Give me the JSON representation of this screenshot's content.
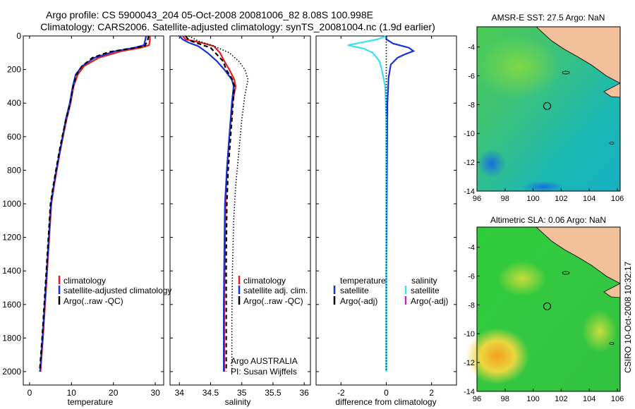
{
  "title": {
    "line1": "Argo profile: CS 5900043_204 05-Oct-2008 20081006_82 8.08S 100.998E",
    "line2": "Climatology: CARS2006. Satellite-adjusted climatology: synTS_20081004.nc (1.9d earlier)"
  },
  "side_label": "CSIRO 10-Oct-2008 10:32:17",
  "credit": {
    "line1": "Argo AUSTRALIA",
    "line2": "PI: Susan Wijffels"
  },
  "colors": {
    "climatology": "#e02020",
    "satellite": "#1830d8",
    "argo": "#000000",
    "cyan": "#38e0f0",
    "magenta": "#d020c8",
    "land": "#f2c09a"
  },
  "chart_data": [
    {
      "type": "line",
      "name": "temperature-profile",
      "xlabel": "temperature",
      "ylabel": "",
      "xlim": [
        -1.5,
        32
      ],
      "ylim": [
        0,
        2080
      ],
      "y_inverted": true,
      "xticks": [
        0,
        10,
        20,
        30
      ],
      "yticks": [
        0,
        200,
        400,
        600,
        800,
        1000,
        1200,
        1400,
        1600,
        1800,
        2000
      ],
      "legend": [
        "climatology",
        "satellite-adjusted climatology",
        "Argo(..raw -QC)"
      ],
      "series": [
        {
          "name": "climatology",
          "style": "solid",
          "color": "#e02020",
          "points": [
            [
              28.7,
              0
            ],
            [
              28.7,
              25
            ],
            [
              28.5,
              55
            ],
            [
              26.5,
              70
            ],
            [
              22,
              90
            ],
            [
              16.5,
              130
            ],
            [
              13,
              180
            ],
            [
              11.5,
              230
            ],
            [
              10.5,
              300
            ],
            [
              9.8,
              400
            ],
            [
              8.8,
              500
            ],
            [
              8,
              600
            ],
            [
              7.2,
              700
            ],
            [
              6.5,
              800
            ],
            [
              5.8,
              900
            ],
            [
              5.2,
              1000
            ],
            [
              4.7,
              1200
            ],
            [
              4.2,
              1400
            ],
            [
              3.7,
              1600
            ],
            [
              3.2,
              1800
            ],
            [
              2.6,
              2000
            ]
          ]
        },
        {
          "name": "satellite-adjusted climatology",
          "style": "solid",
          "color": "#1830d8",
          "points": [
            [
              27.8,
              0
            ],
            [
              27.6,
              25
            ],
            [
              27.3,
              55
            ],
            [
              25,
              70
            ],
            [
              20.5,
              90
            ],
            [
              15.5,
              130
            ],
            [
              12.5,
              180
            ],
            [
              11,
              230
            ],
            [
              10.3,
              300
            ],
            [
              9.6,
              400
            ],
            [
              8.6,
              500
            ],
            [
              7.9,
              600
            ],
            [
              7.1,
              700
            ],
            [
              6.4,
              800
            ],
            [
              5.7,
              900
            ],
            [
              5.1,
              1000
            ],
            [
              4.6,
              1200
            ],
            [
              4.1,
              1400
            ],
            [
              3.6,
              1600
            ],
            [
              3.1,
              1800
            ],
            [
              2.5,
              2000
            ]
          ]
        },
        {
          "name": "Argo(..raw -QC)",
          "style": "dashed",
          "color": "#000000",
          "points": [
            [
              28.4,
              0
            ],
            [
              28.2,
              25
            ],
            [
              27.5,
              60
            ],
            [
              24,
              75
            ],
            [
              19,
              95
            ],
            [
              15,
              130
            ],
            [
              12.5,
              180
            ],
            [
              11.2,
              230
            ],
            [
              10.4,
              300
            ],
            [
              9.7,
              400
            ],
            [
              8.7,
              500
            ],
            [
              7.8,
              600
            ],
            [
              7,
              700
            ],
            [
              6.3,
              800
            ],
            [
              5.6,
              900
            ],
            [
              5,
              1000
            ],
            [
              4.5,
              1200
            ],
            [
              4,
              1400
            ],
            [
              3.5,
              1600
            ],
            [
              3,
              1800
            ],
            [
              2.4,
              2000
            ]
          ]
        }
      ]
    },
    {
      "type": "line",
      "name": "salinity-profile",
      "xlabel": "salinity",
      "xlim": [
        33.85,
        36.1
      ],
      "ylim": [
        0,
        2080
      ],
      "y_inverted": true,
      "xticks": [
        34,
        34.5,
        35,
        35.5,
        36
      ],
      "legend": [
        "climatology",
        "satellite adj. clim.",
        "Argo(..raw -QC)"
      ],
      "series": [
        {
          "name": "climatology",
          "style": "solid",
          "color": "#e02020",
          "points": [
            [
              34.05,
              0
            ],
            [
              34.1,
              20
            ],
            [
              34.35,
              40
            ],
            [
              34.55,
              60
            ],
            [
              34.65,
              100
            ],
            [
              34.72,
              150
            ],
            [
              34.8,
              200
            ],
            [
              34.88,
              260
            ],
            [
              34.9,
              300
            ],
            [
              34.85,
              400
            ],
            [
              34.8,
              600
            ],
            [
              34.76,
              800
            ],
            [
              34.74,
              1000
            ],
            [
              34.73,
              1300
            ],
            [
              34.72,
              1600
            ],
            [
              34.72,
              1800
            ],
            [
              34.72,
              2000
            ]
          ]
        },
        {
          "name": "satellite adj. clim.",
          "style": "solid",
          "color": "#1830d8",
          "points": [
            [
              34.0,
              0
            ],
            [
              34.05,
              20
            ],
            [
              34.15,
              40
            ],
            [
              34.3,
              60
            ],
            [
              34.45,
              100
            ],
            [
              34.6,
              150
            ],
            [
              34.72,
              200
            ],
            [
              34.84,
              260
            ],
            [
              34.87,
              300
            ],
            [
              34.84,
              400
            ],
            [
              34.8,
              600
            ],
            [
              34.76,
              800
            ],
            [
              34.73,
              1000
            ],
            [
              34.72,
              1300
            ],
            [
              34.71,
              1600
            ],
            [
              34.71,
              1800
            ],
            [
              34.71,
              2000
            ]
          ]
        },
        {
          "name": "Argo(..raw -QC)",
          "style": "dashed",
          "color": "#000000",
          "points": [
            [
              34.1,
              0
            ],
            [
              34.15,
              25
            ],
            [
              34.3,
              45
            ],
            [
              34.5,
              70
            ],
            [
              34.6,
              110
            ],
            [
              34.7,
              150
            ],
            [
              34.75,
              200
            ],
            [
              34.85,
              260
            ],
            [
              34.88,
              300
            ],
            [
              34.86,
              400
            ],
            [
              34.82,
              600
            ],
            [
              34.78,
              800
            ],
            [
              34.76,
              1000
            ],
            [
              34.75,
              1300
            ],
            [
              34.75,
              1600
            ],
            [
              34.75,
              1800
            ],
            [
              34.75,
              2000
            ]
          ]
        },
        {
          "name": "envelope",
          "style": "dotted",
          "color": "#000000",
          "points": [
            [
              34.15,
              0
            ],
            [
              34.3,
              30
            ],
            [
              34.55,
              60
            ],
            [
              34.8,
              100
            ],
            [
              34.95,
              150
            ],
            [
              35.05,
              200
            ],
            [
              35.1,
              260
            ],
            [
              35.05,
              350
            ],
            [
              35.0,
              500
            ],
            [
              34.95,
              700
            ],
            [
              34.9,
              900
            ],
            [
              34.87,
              1100
            ],
            [
              34.85,
              1400
            ],
            [
              34.84,
              1700
            ],
            [
              34.84,
              2000
            ]
          ]
        }
      ]
    },
    {
      "type": "line",
      "name": "difference-profile",
      "xlabel": "difference from climatology",
      "xlim": [
        -3.1,
        3.1
      ],
      "ylim": [
        0,
        2080
      ],
      "y_inverted": true,
      "xticks": [
        -2,
        0,
        2
      ],
      "legend": [
        "temperature",
        "satellite",
        "Argo(-adj)",
        "salinity",
        "satellite",
        "Argo(-adj)"
      ],
      "series": [
        {
          "name": "temperature satellite",
          "style": "solid",
          "color": "#1830d8",
          "points": [
            [
              0,
              0
            ],
            [
              0,
              20
            ],
            [
              0.3,
              45
            ],
            [
              1.0,
              70
            ],
            [
              1.2,
              90
            ],
            [
              0.8,
              110
            ],
            [
              0.5,
              130
            ],
            [
              0.2,
              170
            ],
            [
              0.1,
              250
            ],
            [
              0.05,
              400
            ],
            [
              0.03,
              800
            ],
            [
              0,
              1400
            ],
            [
              0,
              2000
            ]
          ]
        },
        {
          "name": "salinity satellite",
          "style": "solid",
          "color": "#38e0f0",
          "points": [
            [
              0,
              0
            ],
            [
              -0.4,
              20
            ],
            [
              -1.7,
              55
            ],
            [
              -1.0,
              75
            ],
            [
              -0.6,
              100
            ],
            [
              -0.3,
              150
            ],
            [
              -0.2,
              200
            ],
            [
              -0.05,
              300
            ],
            [
              0,
              500
            ],
            [
              0,
              2000
            ]
          ]
        },
        {
          "name": "zero",
          "style": "dotted",
          "color": "#000000",
          "points": [
            [
              0,
              0
            ],
            [
              0,
              2000
            ]
          ]
        }
      ]
    },
    {
      "type": "heatmap",
      "name": "sst-map",
      "title": "AMSR-E SST: 27.5 Argo: NaN",
      "xlim": [
        96,
        106.2
      ],
      "ylim": [
        -14,
        -2.6
      ],
      "xticks": [
        96,
        98,
        100,
        102,
        104,
        106
      ],
      "yticks": [
        -4,
        -6,
        -8,
        -10,
        -12,
        -14
      ],
      "marker": [
        101,
        -8.1
      ]
    },
    {
      "type": "heatmap",
      "name": "sla-map",
      "title": "Altimetric SLA: 0.06 Argo: NaN",
      "xlim": [
        96,
        106.2
      ],
      "ylim": [
        -14,
        -2.6
      ],
      "xticks": [
        96,
        98,
        100,
        102,
        104,
        106
      ],
      "yticks": [
        -4,
        -6,
        -8,
        -10,
        -12,
        -14
      ],
      "marker": [
        101,
        -8.1
      ]
    }
  ]
}
